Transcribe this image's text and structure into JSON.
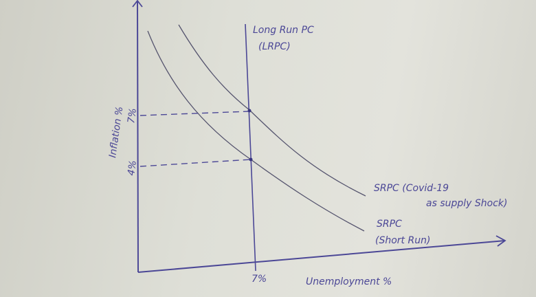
{
  "diagram": {
    "y_axis_label": "Inflation %",
    "x_axis_label": "Unemployment %",
    "y_ticks": [
      "7%",
      "4%"
    ],
    "x_tick": "7%",
    "lrpc_label": [
      "Long Run PC",
      "(LRPC)"
    ],
    "srpc_shifted_label": [
      "SRPC (Covid-19",
      "as supply Shock)"
    ],
    "srpc_label": [
      "SRPC",
      "(Short Run)"
    ],
    "colors": {
      "ink": "#4b4796",
      "curve": "#55546e",
      "paper": "#dcdcd4"
    }
  }
}
